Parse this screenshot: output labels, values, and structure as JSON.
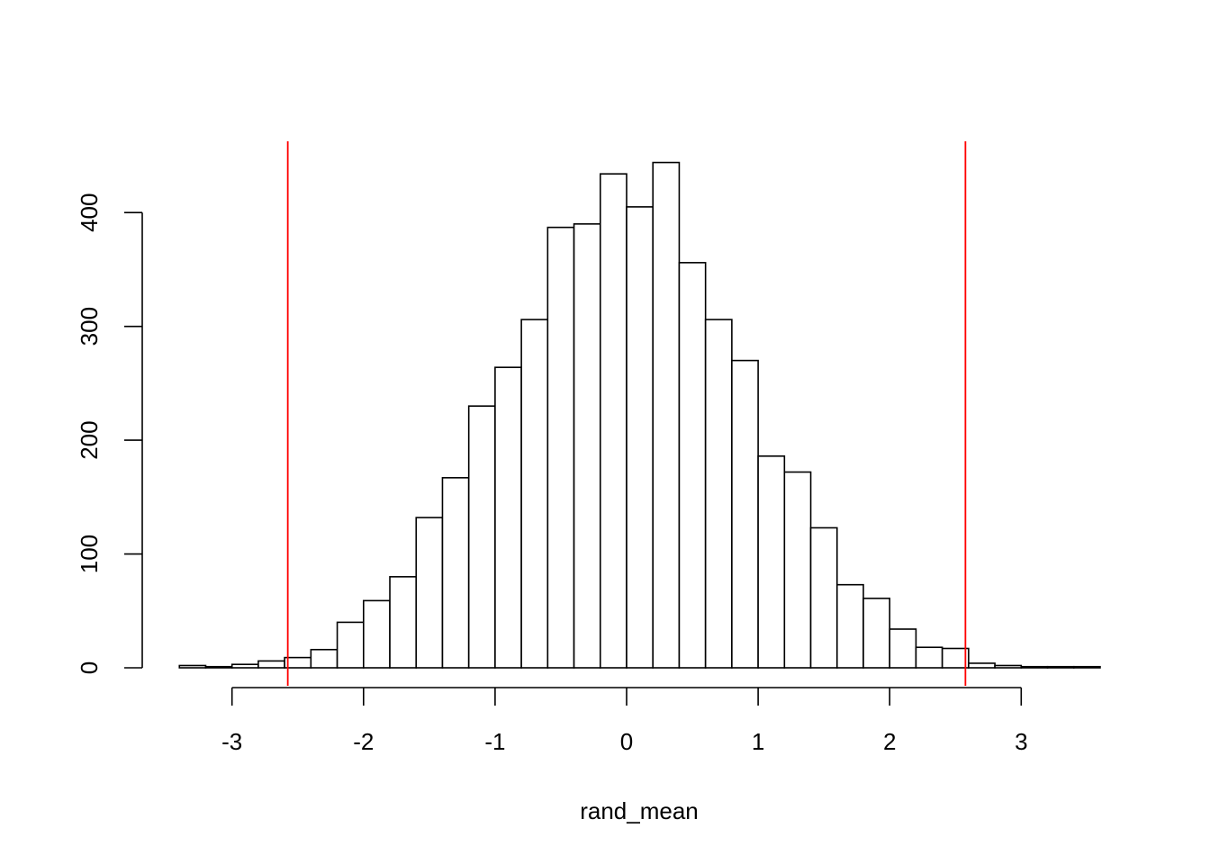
{
  "chart_data": {
    "type": "bar",
    "title": "",
    "xlabel": "rand_mean",
    "ylabel": "",
    "bin_width": 0.2,
    "bin_start": -3.4,
    "bins": [
      {
        "x0": -3.4,
        "x1": -3.2,
        "count": 2
      },
      {
        "x0": -3.2,
        "x1": -3.0,
        "count": 1
      },
      {
        "x0": -3.0,
        "x1": -2.8,
        "count": 3
      },
      {
        "x0": -2.8,
        "x1": -2.6,
        "count": 6
      },
      {
        "x0": -2.6,
        "x1": -2.4,
        "count": 9
      },
      {
        "x0": -2.4,
        "x1": -2.2,
        "count": 16
      },
      {
        "x0": -2.2,
        "x1": -2.0,
        "count": 40
      },
      {
        "x0": -2.0,
        "x1": -1.8,
        "count": 59
      },
      {
        "x0": -1.8,
        "x1": -1.6,
        "count": 80
      },
      {
        "x0": -1.6,
        "x1": -1.4,
        "count": 132
      },
      {
        "x0": -1.4,
        "x1": -1.2,
        "count": 167
      },
      {
        "x0": -1.2,
        "x1": -1.0,
        "count": 230
      },
      {
        "x0": -1.0,
        "x1": -0.8,
        "count": 264
      },
      {
        "x0": -0.8,
        "x1": -0.6,
        "count": 306
      },
      {
        "x0": -0.6,
        "x1": -0.4,
        "count": 387
      },
      {
        "x0": -0.4,
        "x1": -0.2,
        "count": 390
      },
      {
        "x0": -0.2,
        "x1": 0.0,
        "count": 434
      },
      {
        "x0": 0.0,
        "x1": 0.2,
        "count": 405
      },
      {
        "x0": 0.2,
        "x1": 0.4,
        "count": 444
      },
      {
        "x0": 0.4,
        "x1": 0.6,
        "count": 356
      },
      {
        "x0": 0.6,
        "x1": 0.8,
        "count": 306
      },
      {
        "x0": 0.8,
        "x1": 1.0,
        "count": 270
      },
      {
        "x0": 1.0,
        "x1": 1.2,
        "count": 186
      },
      {
        "x0": 1.2,
        "x1": 1.4,
        "count": 172
      },
      {
        "x0": 1.4,
        "x1": 1.6,
        "count": 123
      },
      {
        "x0": 1.6,
        "x1": 1.8,
        "count": 73
      },
      {
        "x0": 1.8,
        "x1": 2.0,
        "count": 61
      },
      {
        "x0": 2.0,
        "x1": 2.2,
        "count": 34
      },
      {
        "x0": 2.2,
        "x1": 2.4,
        "count": 18
      },
      {
        "x0": 2.4,
        "x1": 2.6,
        "count": 17
      },
      {
        "x0": 2.6,
        "x1": 2.8,
        "count": 4
      },
      {
        "x0": 2.8,
        "x1": 3.0,
        "count": 2
      },
      {
        "x0": 3.0,
        "x1": 3.2,
        "count": 1
      },
      {
        "x0": 3.2,
        "x1": 3.4,
        "count": 1
      },
      {
        "x0": 3.4,
        "x1": 3.6,
        "count": 1
      }
    ],
    "x_ticks": [
      -3,
      -2,
      -1,
      0,
      1,
      2,
      3
    ],
    "y_ticks": [
      0,
      100,
      200,
      300,
      400
    ],
    "xlim": [
      -4.1,
      4.0
    ],
    "ylim": [
      0,
      462
    ],
    "reference_lines": [
      {
        "x": -2.576,
        "color": "#ff0000"
      },
      {
        "x": 2.576,
        "color": "#ff0000"
      }
    ],
    "grid": false
  }
}
